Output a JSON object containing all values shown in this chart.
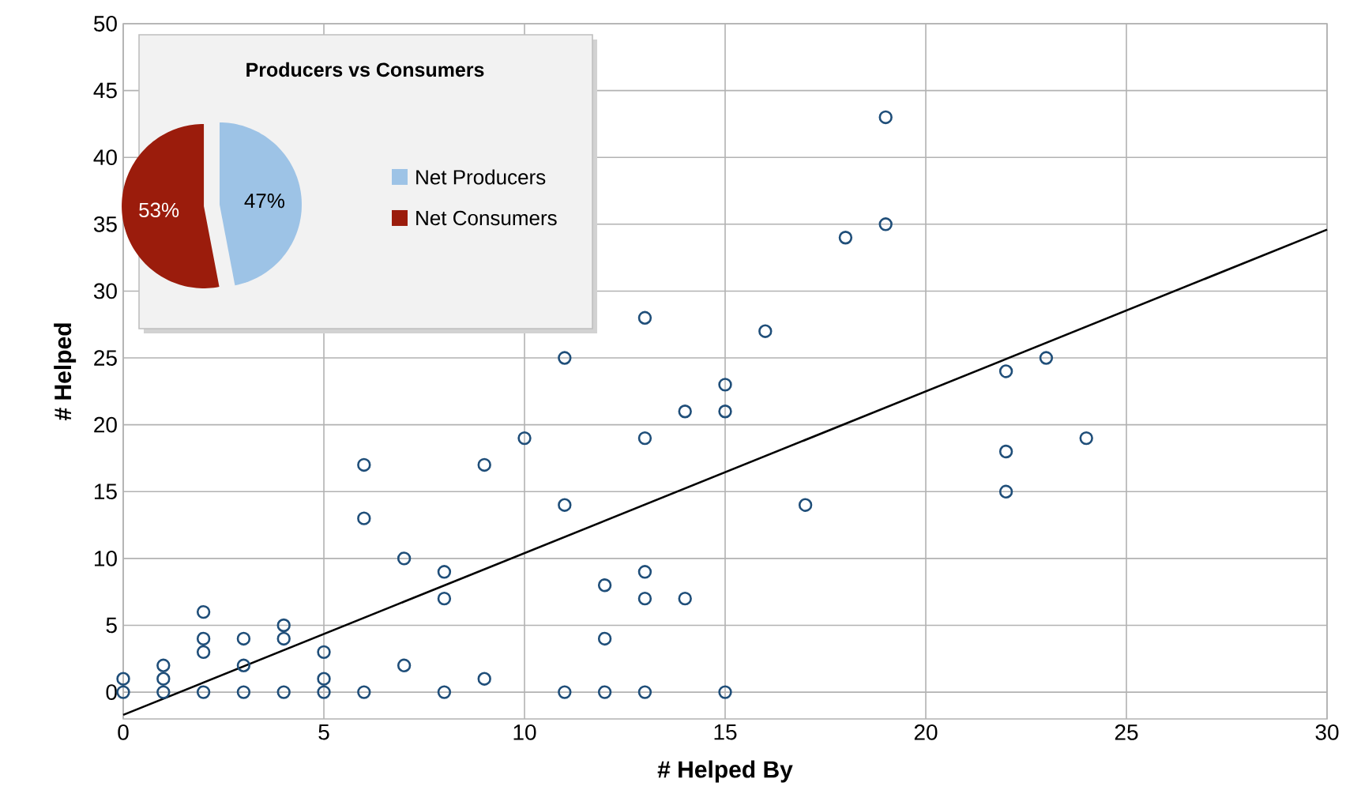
{
  "chart_data": [
    {
      "type": "scatter",
      "xlabel": "# Helped By",
      "ylabel": "# Helped",
      "series": [
        {
          "type": "scatter",
          "color": "#1f4e79",
          "marker": "circle",
          "x": [
            0,
            0,
            1,
            1,
            1,
            2,
            2,
            2,
            2,
            3,
            3,
            3,
            4,
            4,
            4,
            5,
            5,
            5,
            6,
            6,
            6,
            7,
            7,
            8,
            8,
            8,
            9,
            9,
            10,
            11,
            11,
            11,
            12,
            12,
            12,
            13,
            13,
            13,
            13,
            13,
            14,
            14,
            15,
            15,
            15,
            16,
            17,
            18,
            19,
            19,
            22,
            22,
            22,
            23,
            24
          ],
          "values": [
            0,
            1,
            0,
            1,
            2,
            0,
            3,
            4,
            6,
            0,
            2,
            4,
            0,
            4,
            5,
            0,
            1,
            3,
            0,
            13,
            17,
            2,
            10,
            0,
            7,
            9,
            1,
            17,
            19,
            0,
            14,
            25,
            0,
            4,
            8,
            0,
            7,
            9,
            19,
            28,
            7,
            21,
            0,
            21,
            23,
            27,
            14,
            34,
            35,
            43,
            15,
            18,
            24,
            25,
            19
          ]
        },
        {
          "type": "line",
          "color": "#000000",
          "marker": "none",
          "x": [
            0,
            30
          ],
          "values": [
            -1.7,
            34.6
          ]
        }
      ],
      "xlim": [
        0,
        30
      ],
      "ylim": [
        -2,
        50
      ],
      "xticks": [
        0,
        5,
        10,
        15,
        20,
        25,
        30
      ],
      "yticks": [
        0,
        5,
        10,
        15,
        20,
        25,
        30,
        35,
        40,
        45,
        50
      ],
      "grid": true,
      "legend": false
    },
    {
      "type": "pie",
      "title": "Producers vs Consumers",
      "categories": [
        "Net Producers",
        "Net Consumers"
      ],
      "values": [
        47,
        53
      ],
      "colors": [
        "#9dc3e6",
        "#9b1c0c"
      ],
      "value_labels": [
        "47%",
        "53%"
      ],
      "legend": "right"
    }
  ]
}
